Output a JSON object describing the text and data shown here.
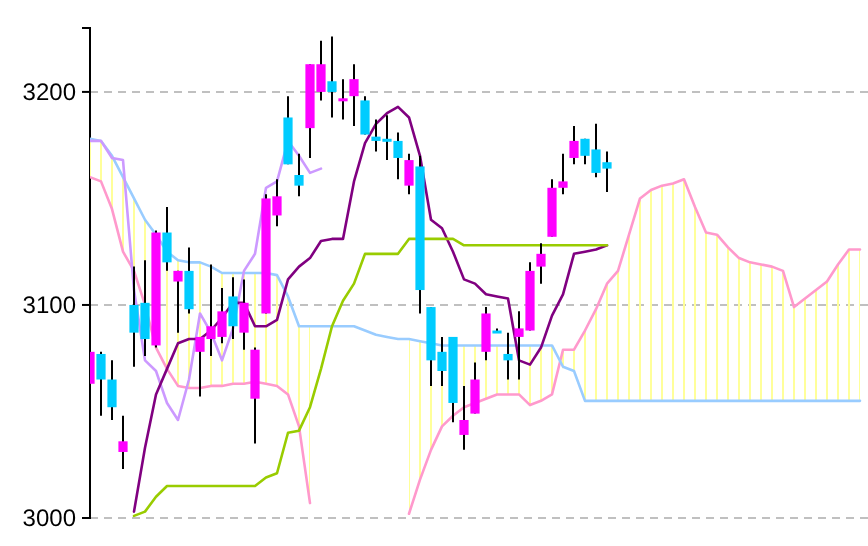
{
  "chart_data": {
    "type": "candlestick",
    "categories": [
      null,
      null,
      null,
      null,
      null,
      null,
      null,
      null,
      null,
      null,
      null,
      null,
      null,
      null,
      null,
      null,
      null,
      null,
      null,
      null,
      null,
      null,
      null,
      null,
      null,
      null,
      null,
      null,
      null,
      null,
      null,
      null,
      null,
      null,
      null,
      null,
      null,
      null,
      null,
      null,
      null,
      null,
      null,
      null,
      null,
      null,
      null,
      null,
      null,
      null,
      null,
      null,
      null,
      null,
      null,
      null,
      null,
      null,
      null,
      null,
      null,
      null,
      null,
      null,
      null,
      null,
      null,
      null,
      null,
      null,
      null
    ],
    "ohlc": [
      [
        3063,
        3078,
        3063,
        3078
      ],
      [
        3077,
        3078,
        3048,
        3065
      ],
      [
        3065,
        3074,
        3046,
        3052
      ],
      [
        3031,
        3048,
        3023,
        3036
      ],
      [
        3100,
        3118,
        3071,
        3087
      ],
      [
        3101,
        3121,
        3076,
        3084
      ],
      [
        3081,
        3135,
        3080,
        3134
      ],
      [
        3134,
        3146,
        3116,
        3120
      ],
      [
        3111,
        3116,
        3087,
        3116
      ],
      [
        3116,
        3127,
        3096,
        3098
      ],
      [
        3078,
        3085,
        3057,
        3085
      ],
      [
        3084,
        3119,
        3076,
        3090
      ],
      [
        3085,
        3108,
        3082,
        3097
      ],
      [
        3104,
        3113,
        3084,
        3090
      ],
      [
        3087,
        3112,
        3079,
        3101
      ],
      [
        3056,
        3080,
        3035,
        3079
      ],
      [
        3096,
        3152,
        3096,
        3150
      ],
      [
        3142,
        3159,
        3137,
        3151
      ],
      [
        3188,
        3198,
        3166,
        3166
      ],
      [
        3161,
        3171,
        3151,
        3156
      ],
      [
        3183,
        3213,
        3169,
        3213
      ],
      [
        3200,
        3224,
        3196,
        3213
      ],
      [
        3205,
        3226,
        3188,
        3200
      ],
      [
        3196,
        3206,
        3187,
        3197
      ],
      [
        3198,
        3213,
        3184,
        3206
      ],
      [
        3196,
        3198,
        3180,
        3180
      ],
      [
        3179,
        3187,
        3172,
        3177
      ],
      [
        3178,
        3189,
        3168,
        3177
      ],
      [
        3177,
        3181,
        3159,
        3169
      ],
      [
        3156,
        3171,
        3152,
        3168
      ],
      [
        3165,
        3170,
        3096,
        3107
      ],
      [
        3099,
        3099,
        3062,
        3074
      ],
      [
        3078,
        3085,
        3062,
        3069
      ],
      [
        3085,
        3085,
        3045,
        3054
      ],
      [
        3039,
        3062,
        3032,
        3046
      ],
      [
        3049,
        3073,
        3049,
        3065
      ],
      [
        3078,
        3099,
        3074,
        3096
      ],
      [
        3088,
        3089,
        3087,
        3087
      ],
      [
        3077,
        3087,
        3065,
        3074
      ],
      [
        3085,
        3097,
        3065,
        3089
      ],
      [
        3088,
        3120,
        3088,
        3116
      ],
      [
        3118,
        3129,
        3110,
        3124
      ],
      [
        3132,
        3159,
        3132,
        3155
      ],
      [
        3155,
        3171,
        3152,
        3158
      ],
      [
        3169,
        3184,
        3166,
        3177
      ],
      [
        3178,
        3178,
        3166,
        3170
      ],
      [
        3173,
        3185,
        3160,
        3162
      ],
      [
        3167,
        3172,
        3153,
        3164
      ],
      null,
      null,
      null,
      null,
      null,
      null,
      null,
      null,
      null,
      null,
      null,
      null,
      null,
      null,
      null,
      null,
      null,
      null,
      null,
      null,
      null,
      null,
      null
    ],
    "colors": [
      "#ff00ff",
      "#00ccff",
      "#00ccff",
      "#ff00ff",
      "#00ccff",
      "#00ccff",
      "#ff00ff",
      "#00ccff",
      "#ff00ff",
      "#00ccff",
      "#ff00ff",
      "#ff00ff",
      "#ff00ff",
      "#00ccff",
      "#ff00ff",
      "#ff00ff",
      "#ff00ff",
      "#ff00ff",
      "#00ccff",
      "#00ccff",
      "#ff00ff",
      "#ff00ff",
      "#00ccff",
      "#ff00ff",
      "#ff00ff",
      "#00ccff",
      "#00ccff",
      "#00ccff",
      "#00ccff",
      "#ff00ff",
      "#00ccff",
      "#00ccff",
      "#00ccff",
      "#00ccff",
      "#ff00ff",
      "#ff00ff",
      "#ff00ff",
      "#00ccff",
      "#00ccff",
      "#ff00ff",
      "#ff00ff",
      "#ff00ff",
      "#ff00ff",
      "#ff00ff",
      "#ff00ff",
      "#00ccff",
      "#00ccff",
      "#00ccff",
      null,
      null,
      null,
      null,
      null,
      null,
      null,
      null,
      null,
      null,
      null,
      null,
      null,
      null,
      null,
      null,
      null,
      null,
      null,
      null,
      null,
      null,
      null
    ],
    "series": [
      {
        "type": "line",
        "color": "#ff99cc",
        "lower": [
          3160,
          3158,
          3145,
          3125,
          3116,
          3100,
          3080,
          3070,
          3062,
          3061,
          3061,
          3062,
          3062,
          3063,
          3063,
          3064,
          3063,
          3062,
          3058,
          3043,
          3007,
          null,
          null,
          null,
          null,
          null,
          null,
          null,
          null,
          3002,
          3018,
          3032,
          3043,
          3048,
          3052,
          3054,
          3056,
          3058,
          3058,
          3058,
          3053,
          3055,
          3058,
          3071,
          3069,
          3055,
          3055,
          3055,
          3055,
          3055,
          3055,
          3055,
          3055,
          3055,
          3055,
          3055,
          3055,
          3055,
          3055,
          3055,
          3055,
          3055,
          3055,
          3055,
          3055,
          3055,
          3055,
          3055,
          3055,
          3055,
          3055
        ],
        "upper": [
          3178,
          3177,
          3170,
          3160,
          3150,
          3140,
          3133,
          3125,
          3121,
          3120,
          3120,
          3118,
          3115,
          3115,
          3115,
          3115,
          3115,
          3114,
          3104,
          3090,
          3090,
          null,
          null,
          null,
          null,
          null,
          null,
          null,
          null,
          3084,
          3083,
          3082,
          3081,
          3081,
          3081,
          3081,
          3081,
          3081,
          3081,
          3081,
          3081,
          3081,
          3081,
          3079,
          3079,
          3088,
          3098,
          3110,
          3116,
          3133,
          3150,
          3154,
          3156,
          3157,
          3159,
          3146,
          3134,
          3133,
          3127,
          3122,
          3120,
          3119,
          3118,
          3116,
          3099,
          3103,
          3107,
          3111,
          3119,
          3126,
          3126
        ],
        "values": [
          3160,
          3158,
          3145,
          3125,
          3116,
          3100,
          3080,
          3070,
          3062,
          3061,
          3061,
          3062,
          3062,
          3063,
          3063,
          3064,
          3063,
          3062,
          3058,
          3043,
          3007,
          null,
          null,
          null,
          null,
          null,
          null,
          null,
          null,
          3002,
          3018,
          3032,
          3043,
          3048,
          3052,
          3054,
          3056,
          3058,
          3058,
          3058,
          3053,
          3055,
          3058,
          3079,
          3079,
          3088,
          3098,
          3110,
          3116,
          3133,
          3150,
          3154,
          3156,
          3157,
          3159,
          3146,
          3134,
          3133,
          3127,
          3122,
          3120,
          3119,
          3118,
          3116,
          3099,
          3103,
          3107,
          3111,
          3119,
          3126,
          3126
        ]
      },
      {
        "type": "line",
        "color": "#99ccff",
        "values": [
          3178,
          3177,
          3170,
          3160,
          3150,
          3140,
          3133,
          3125,
          3121,
          3120,
          3120,
          3118,
          3115,
          3115,
          3115,
          3115,
          3115,
          3114,
          3104,
          3090,
          3090,
          3090,
          3090,
          3090,
          3090,
          3088,
          3086,
          3085,
          3084,
          3084,
          3083,
          3082,
          3081,
          3081,
          3081,
          3081,
          3081,
          3081,
          3081,
          3081,
          3081,
          3081,
          3081,
          3071,
          3069,
          3055,
          3055,
          3055,
          3055,
          3055,
          3055,
          3055,
          3055,
          3055,
          3055,
          3055,
          3055,
          3055,
          3055,
          3055,
          3055,
          3055,
          3055,
          3055,
          3055,
          3055,
          3055,
          3055,
          3055,
          3055,
          3055
        ]
      },
      {
        "type": "line",
        "color": "#cc99ff",
        "values": [
          3177,
          3177,
          3169,
          3168,
          3107,
          3074,
          3069,
          3054,
          3046,
          3065,
          3096,
          3087,
          3074,
          3089,
          3116,
          3124,
          3155,
          3158,
          3177,
          3170,
          3162,
          3164,
          null,
          null,
          null,
          null,
          null,
          null,
          null,
          null,
          null,
          null,
          null,
          null,
          null,
          null,
          null,
          null,
          null,
          null,
          null,
          null,
          null,
          null,
          null,
          null,
          null,
          null,
          null,
          null,
          null,
          null,
          null,
          null,
          null,
          null,
          null,
          null,
          null,
          null,
          null,
          null,
          null,
          null,
          null,
          null,
          null,
          null,
          null,
          null,
          null
        ]
      },
      {
        "type": "line",
        "color": "#800080",
        "values": [
          null,
          null,
          null,
          null,
          3003,
          3033,
          3058,
          3070,
          3082,
          3084,
          3084,
          3088,
          3094,
          3101,
          3101,
          3090,
          3090,
          3093,
          3112,
          3118,
          3122,
          3130,
          3131,
          3131,
          3158,
          3176,
          3185,
          3190,
          3193,
          3188,
          3170,
          3140,
          3136,
          3125,
          3112,
          3110,
          3105,
          3104,
          3103,
          3074,
          3072,
          3080,
          3095,
          3105,
          3124,
          3125,
          3126,
          3128,
          null,
          null,
          null,
          null,
          null,
          null,
          null,
          null,
          null,
          null,
          null,
          null,
          null,
          null,
          null,
          null,
          null,
          null,
          null,
          null,
          null,
          null,
          null
        ]
      },
      {
        "type": "line",
        "color": "#99cc00",
        "values": [
          null,
          null,
          null,
          null,
          3001,
          3003,
          3010,
          3015,
          3015,
          3015,
          3015,
          3015,
          3015,
          3015,
          3015,
          3015,
          3019,
          3021,
          3040,
          3041,
          3052,
          3070,
          3090,
          3102,
          3110,
          3124,
          3124,
          3124,
          3124,
          3131,
          3131,
          3131,
          3131,
          3131,
          3128,
          3128,
          3128,
          3128,
          3128,
          3128,
          3128,
          3128,
          3128,
          3128,
          3128,
          3128,
          3128,
          3128,
          null,
          null,
          null,
          null,
          null,
          null,
          null,
          null,
          null,
          null,
          null,
          null,
          null,
          null,
          null,
          null,
          null,
          null,
          null,
          null,
          null,
          null,
          null
        ]
      }
    ],
    "ylim": [
      3000,
      3230
    ],
    "yticks": [
      3000,
      3100,
      3200
    ],
    "grid": "y",
    "tick_labels": "y"
  }
}
